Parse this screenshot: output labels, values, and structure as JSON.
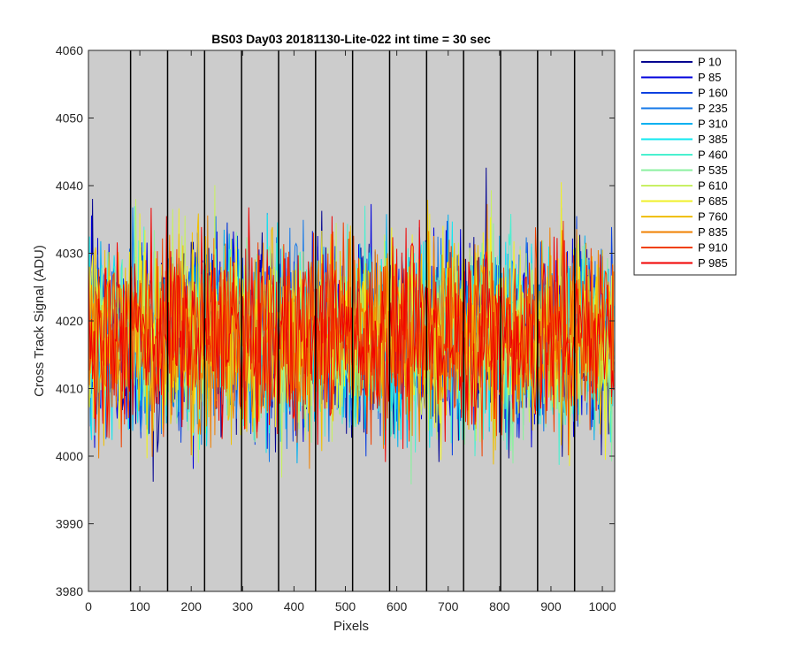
{
  "chart_data": {
    "type": "line",
    "title": "BS03 Day03 20181130-Lite-022 int time = 30 sec",
    "xlabel": "Pixels",
    "ylabel": "Cross Track Signal (ADU)",
    "xlim": [
      0,
      1024
    ],
    "ylim": [
      3980,
      4060
    ],
    "xticks": [
      0,
      100,
      200,
      300,
      400,
      500,
      600,
      700,
      800,
      900,
      1000
    ],
    "xtick_labels": [
      "0",
      "100",
      "200",
      "300",
      "400",
      "500",
      "600",
      "700",
      "800",
      "900",
      "1000"
    ],
    "yticks": [
      3980,
      3990,
      4000,
      4010,
      4020,
      4030,
      4040,
      4050,
      4060
    ],
    "ytick_labels": [
      "3980",
      "3990",
      "4000",
      "4010",
      "4020",
      "4030",
      "4040",
      "4050",
      "4060"
    ],
    "background": "#cccccc",
    "vertical_markers": [
      82,
      154,
      226,
      298,
      370,
      442,
      514,
      586,
      658,
      730,
      802,
      874,
      946
    ],
    "legend_location": "outside-right-top",
    "series_mean": 4018,
    "series_noise_std": 7,
    "series": [
      {
        "name": "P 10",
        "color": "#000090"
      },
      {
        "name": "P 85",
        "color": "#0000dc"
      },
      {
        "name": "P 160",
        "color": "#0a40e0"
      },
      {
        "name": "P 235",
        "color": "#1478e8"
      },
      {
        "name": "P 310",
        "color": "#00b0f0"
      },
      {
        "name": "P 385",
        "color": "#10e8f0"
      },
      {
        "name": "P 460",
        "color": "#4af0d0"
      },
      {
        "name": "P 535",
        "color": "#8cf0a0"
      },
      {
        "name": "P 610",
        "color": "#c8f064"
      },
      {
        "name": "P 685",
        "color": "#f0f028"
      },
      {
        "name": "P 760",
        "color": "#f0c000"
      },
      {
        "name": "P 835",
        "color": "#f08000"
      },
      {
        "name": "P 910",
        "color": "#f04000"
      },
      {
        "name": "P 985",
        "color": "#f00000"
      }
    ]
  }
}
